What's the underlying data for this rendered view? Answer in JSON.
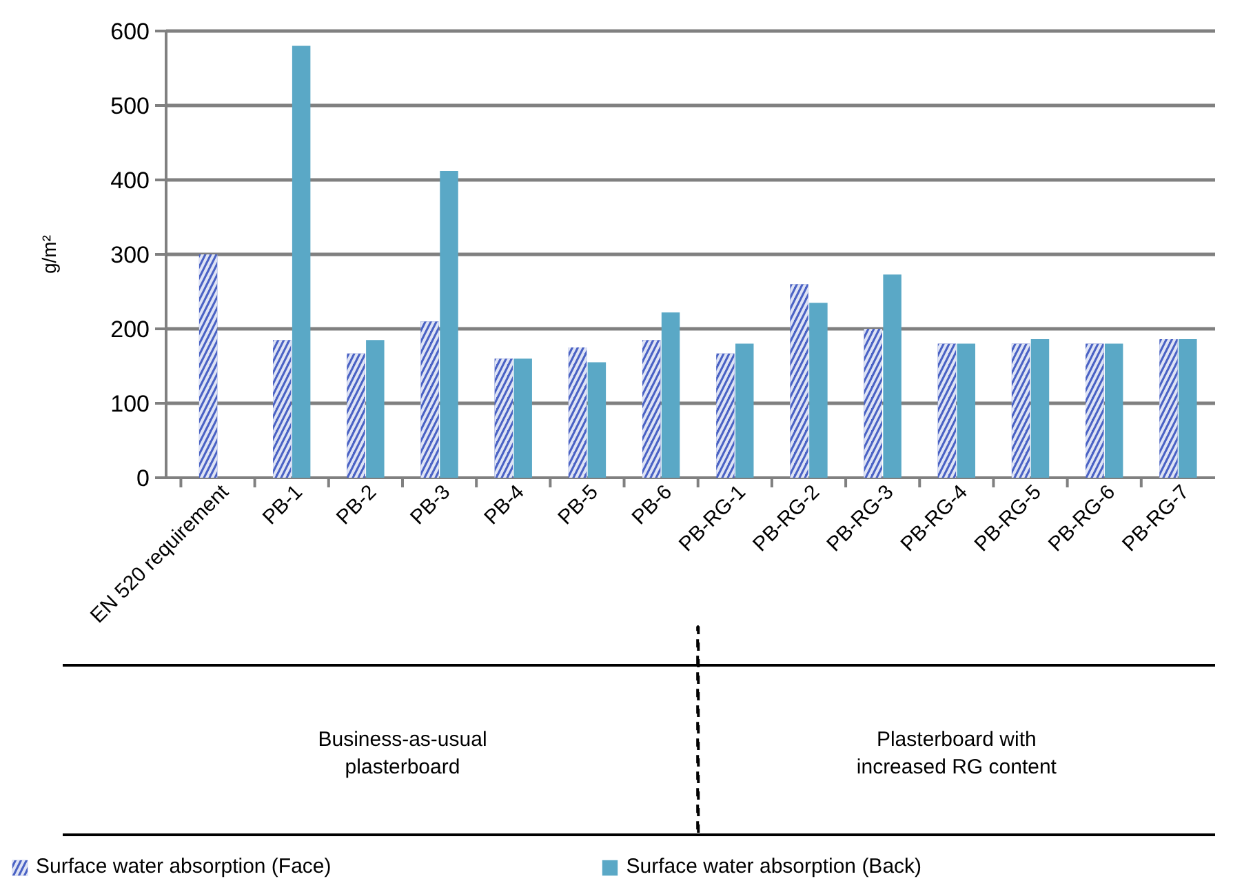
{
  "chart_data": {
    "type": "bar",
    "ylabel": "g/m²",
    "categories": [
      "EN 520 requirement",
      "PB-1",
      "PB-2",
      "PB-3",
      "PB-4",
      "PB-5",
      "PB-6",
      "PB-RG-1",
      "PB-RG-2",
      "PB-RG-3",
      "PB-RG-4",
      "PB-RG-5",
      "PB-RG-6",
      "PB-RG-7"
    ],
    "series": [
      {
        "name": "Surface water absorption (Face)",
        "color": "#4a62c4",
        "values": [
          300,
          185,
          167,
          210,
          160,
          175,
          185,
          167,
          260,
          200,
          180,
          180,
          180,
          186
        ]
      },
      {
        "name": "Surface water absorption (Back)",
        "color": "#5aa8c6",
        "values": [
          null,
          580,
          185,
          412,
          160,
          155,
          222,
          180,
          235,
          273,
          180,
          186,
          180,
          186
        ]
      }
    ],
    "ylim": [
      0,
      600
    ],
    "yticks": [
      0,
      100,
      200,
      300,
      400,
      500,
      600
    ],
    "grid": "y",
    "legend": "bottom",
    "annotations": [
      "Business-as-usual\nplasterboard",
      "Plasterboard with\nincreased RG content"
    ]
  }
}
